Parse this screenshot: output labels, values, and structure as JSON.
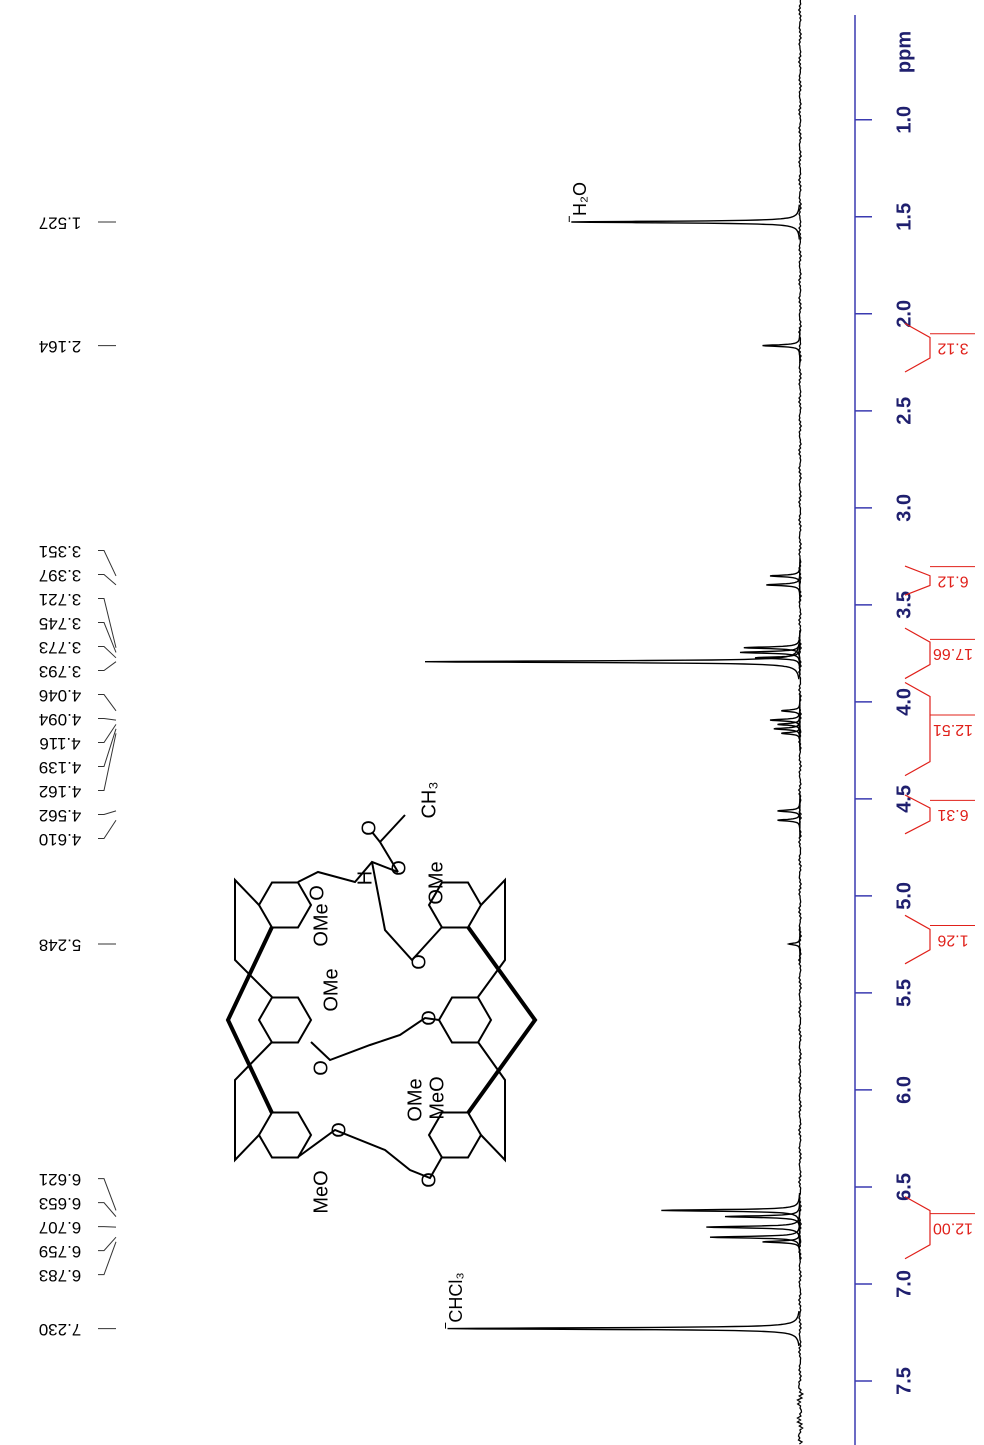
{
  "chart_data": {
    "type": "nmr",
    "x_label": "ppm",
    "xlim": [
      0.46,
      7.83
    ],
    "xticks": [
      {
        "value": 1,
        "label": "1.0"
      },
      {
        "value": 1.5,
        "label": "1.5"
      },
      {
        "value": 2,
        "label": "2.0"
      },
      {
        "value": 2.5,
        "label": "2.5"
      },
      {
        "value": 3,
        "label": "3.0"
      },
      {
        "value": 3.5,
        "label": "3.5"
      },
      {
        "value": 4,
        "label": "4.0"
      },
      {
        "value": 4.5,
        "label": "4.5"
      },
      {
        "value": 5,
        "label": "5.0"
      },
      {
        "value": 5.5,
        "label": "5.5"
      },
      {
        "value": 6,
        "label": "6.0"
      },
      {
        "value": 6.5,
        "label": "6.5"
      },
      {
        "value": 7,
        "label": "7.0"
      },
      {
        "value": 7.5,
        "label": "7.5"
      }
    ],
    "color": "#000000",
    "axis_color": "#3a3ab0",
    "peaks": {
      "x": [
        1.527,
        2.164,
        3.351,
        3.397,
        3.721,
        3.745,
        3.773,
        3.793,
        4.046,
        4.094,
        4.116,
        4.139,
        4.162,
        4.562,
        4.61,
        5.248,
        6.621,
        6.653,
        6.707,
        6.759,
        6.783,
        7.23
      ],
      "x_labels": [
        "1.527",
        "2.164",
        "3.351",
        "3.397",
        "3.721",
        "3.745",
        "3.773",
        "3.793",
        "4.046",
        "4.094",
        "4.116",
        "4.139",
        "4.162",
        "4.562",
        "4.610",
        "5.248",
        "6.621",
        "6.653",
        "6.707",
        "6.759",
        "6.783",
        "7.230"
      ],
      "intensities": [
        61,
        10,
        8,
        9,
        15,
        16,
        12,
        100,
        5,
        8,
        6,
        7,
        5,
        6,
        6,
        3,
        37,
        20,
        25,
        24,
        10,
        94
      ]
    },
    "annotations": [
      {
        "text": "H₂O",
        "x": 1.527
      },
      {
        "text": "CHCl₃",
        "x": 7.23
      }
    ],
    "integrals": {
      "ranges": [
        [
          2.05,
          2.3
        ],
        [
          3.3,
          3.45
        ],
        [
          3.62,
          3.88
        ],
        [
          3.9,
          4.38
        ],
        [
          4.48,
          4.68
        ],
        [
          5.1,
          5.35
        ],
        [
          6.55,
          6.87
        ]
      ],
      "values": [
        3.12,
        6.12,
        17.66,
        12.51,
        6.31,
        1.26,
        12
      ],
      "value_labels": [
        "3.12",
        "6.12",
        "17.66",
        "12.51",
        "6.31",
        "1.26",
        "12.00"
      ],
      "color": "#e0201a"
    }
  },
  "structure": {
    "labels": [
      "O",
      "OMe",
      "H",
      "O",
      "O",
      "CH₃",
      "OMe",
      "O",
      "OMe",
      "O",
      "O",
      "OMe",
      "MeO",
      "O",
      "O",
      "MeO"
    ]
  }
}
